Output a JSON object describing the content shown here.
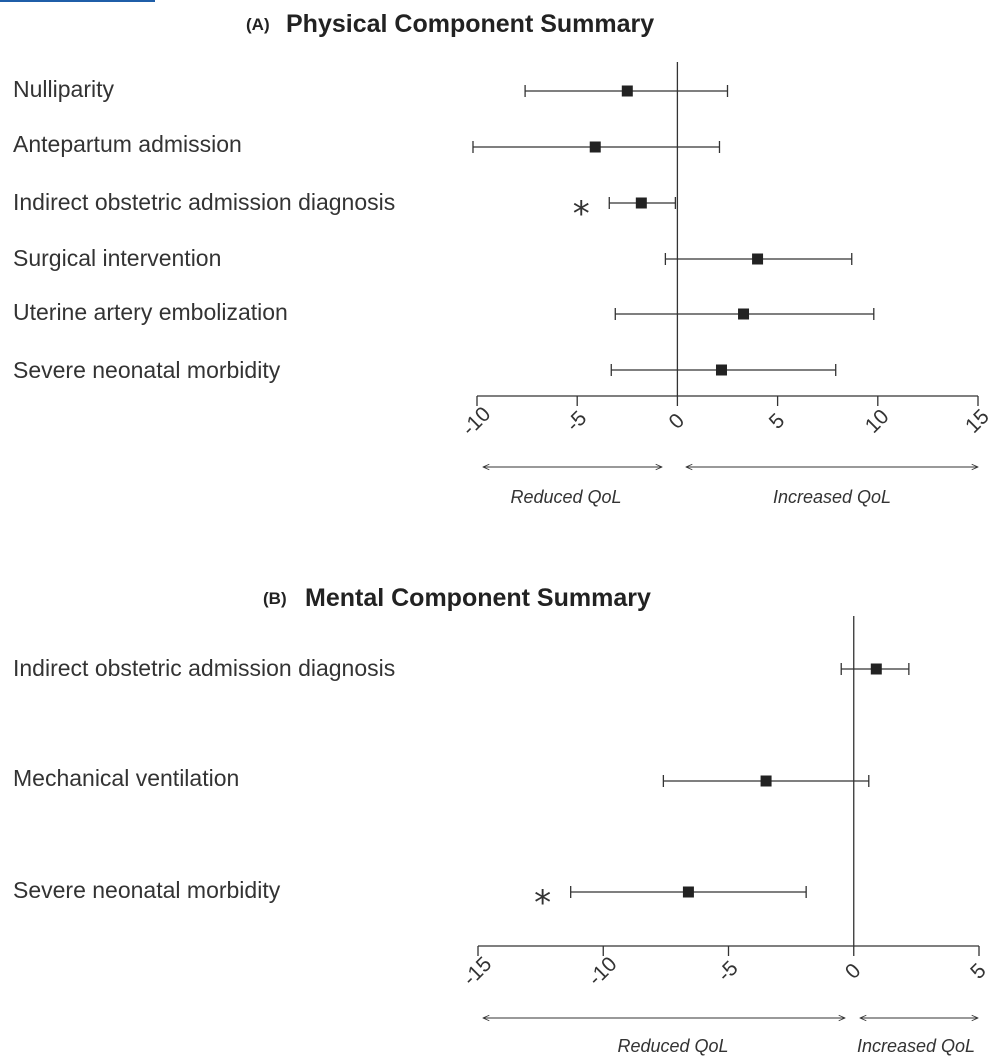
{
  "chart_data": [
    {
      "type": "forest",
      "panel": "(A)",
      "title": "Physical Component Summary",
      "xlim": [
        -10,
        15
      ],
      "xticks": [
        "-10",
        "-5",
        "0",
        "5",
        "10",
        "15"
      ],
      "direction_labels": [
        "Reduced QoL",
        "Increased QoL"
      ],
      "rows": [
        {
          "label": "Nulliparity",
          "estimate": -2.5,
          "lower": -7.6,
          "upper": 2.5,
          "significant": false
        },
        {
          "label": "Antepartum admission",
          "estimate": -4.1,
          "lower": -10.2,
          "upper": 2.1,
          "significant": false
        },
        {
          "label": "Indirect obstetric admission diagnosis",
          "estimate": -1.8,
          "lower": -3.4,
          "upper": -0.1,
          "significant": true
        },
        {
          "label": "Surgical intervention",
          "estimate": 4.0,
          "lower": -0.6,
          "upper": 8.7,
          "significant": false
        },
        {
          "label": "Uterine artery embolization",
          "estimate": 3.3,
          "lower": -3.1,
          "upper": 9.8,
          "significant": false
        },
        {
          "label": "Severe neonatal morbidity",
          "estimate": 2.2,
          "lower": -3.3,
          "upper": 7.9,
          "significant": false
        }
      ],
      "significance_marker": "*"
    },
    {
      "type": "forest",
      "panel": "(B)",
      "title": "Mental Component Summary",
      "xlim": [
        -15,
        5
      ],
      "xticks": [
        "-15",
        "-10",
        "-5",
        "0",
        "5"
      ],
      "direction_labels": [
        "Reduced QoL",
        "Increased QoL"
      ],
      "rows": [
        {
          "label": "Indirect obstetric admission diagnosis",
          "estimate": 0.9,
          "lower": -0.5,
          "upper": 2.2,
          "significant": false
        },
        {
          "label": "Mechanical ventilation",
          "estimate": -3.5,
          "lower": -7.6,
          "upper": 0.6,
          "significant": false
        },
        {
          "label": "Severe neonatal morbidity",
          "estimate": -6.6,
          "lower": -11.3,
          "upper": -1.9,
          "significant": true
        }
      ],
      "significance_marker": "*"
    }
  ]
}
